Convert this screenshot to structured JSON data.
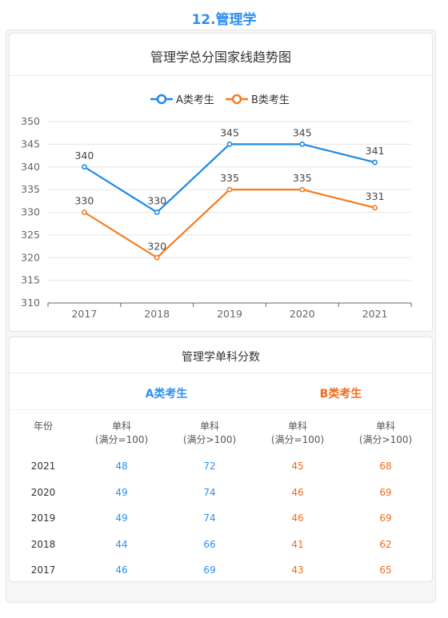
{
  "page_title": "12.管理学",
  "chart_data": {
    "type": "line",
    "title": "管理学总分国家线趋势图",
    "categories": [
      "2017",
      "2018",
      "2019",
      "2020",
      "2021"
    ],
    "series": [
      {
        "name": "A类考生",
        "color": "#1e88e5",
        "values": [
          340,
          330,
          345,
          345,
          341
        ]
      },
      {
        "name": "B类考生",
        "color": "#f57c20",
        "values": [
          330,
          320,
          335,
          335,
          331
        ]
      }
    ],
    "ylim": [
      310,
      350
    ],
    "yticks": [
      310,
      315,
      320,
      325,
      330,
      335,
      340,
      345,
      350
    ],
    "grid": true,
    "legend_position": "top-center"
  },
  "table": {
    "title": "管理学单科分数",
    "group_a": "A类考生",
    "group_b": "B类考生",
    "color_a": "#2f8ff0",
    "color_b": "#f26b1d",
    "year_header": "年份",
    "col_label": "单科",
    "col_sub_full100": "(满分=100)",
    "col_sub_over100": "(满分>100)",
    "rows": [
      {
        "year": "2021",
        "a100": "48",
        "a_over": "72",
        "b100": "45",
        "b_over": "68"
      },
      {
        "year": "2020",
        "a100": "49",
        "a_over": "74",
        "b100": "46",
        "b_over": "69"
      },
      {
        "year": "2019",
        "a100": "49",
        "a_over": "74",
        "b100": "46",
        "b_over": "69"
      },
      {
        "year": "2018",
        "a100": "44",
        "a_over": "66",
        "b100": "41",
        "b_over": "62"
      },
      {
        "year": "2017",
        "a100": "46",
        "a_over": "69",
        "b100": "43",
        "b_over": "65"
      }
    ]
  }
}
